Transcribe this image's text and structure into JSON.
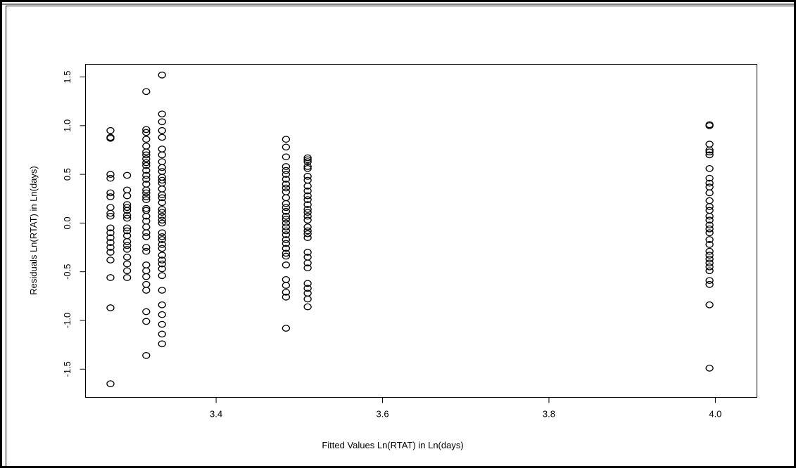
{
  "chart_data": {
    "type": "scatter",
    "title": "",
    "xlabel": "Fitted Values  Ln(RTAT) in Ln(days)",
    "ylabel": "Residuals  Ln(RTAT) in Ln(days)",
    "xlim": [
      3.243,
      4.05
    ],
    "ylim": [
      -1.79,
      1.63
    ],
    "x_ticks": [
      3.4,
      3.6,
      3.8,
      4.0
    ],
    "x_tick_labels": [
      "3.4",
      "3.6",
      "3.8",
      "4.0"
    ],
    "y_ticks": [
      -1.5,
      -1.0,
      -0.5,
      0.0,
      0.5,
      1.0,
      1.5
    ],
    "y_tick_labels": [
      "-1.5",
      "-1.0",
      "-0.5",
      "0.0",
      "0.5",
      "1.0",
      "1.5"
    ],
    "grid": false,
    "marker": "open-circle",
    "columns": [
      {
        "x": 3.273,
        "y": [
          0.95,
          0.88,
          0.87,
          0.5,
          0.46,
          0.31,
          0.27,
          0.16,
          0.1,
          0.07,
          -0.05,
          -0.1,
          -0.15,
          -0.2,
          -0.25,
          -0.3,
          -0.38,
          -0.56,
          -0.87,
          -1.65
        ]
      },
      {
        "x": 3.293,
        "y": [
          0.49,
          0.34,
          0.28,
          0.19,
          0.16,
          0.13,
          0.08,
          0.05,
          -0.05,
          -0.08,
          -0.13,
          -0.19,
          -0.23,
          -0.27,
          -0.35,
          -0.42,
          -0.49,
          -0.56
        ]
      },
      {
        "x": 3.316,
        "y": [
          1.35,
          0.96,
          0.93,
          0.86,
          0.79,
          0.73,
          0.7,
          0.66,
          0.62,
          0.59,
          0.54,
          0.49,
          0.45,
          0.4,
          0.34,
          0.31,
          0.27,
          0.24,
          0.15,
          0.13,
          0.07,
          0.02,
          -0.04,
          -0.1,
          -0.14,
          -0.25,
          -0.29,
          -0.43,
          -0.49,
          -0.55,
          -0.63,
          -0.69,
          -0.91,
          -1.01,
          -1.36
        ]
      },
      {
        "x": 3.335,
        "y": [
          1.52,
          1.12,
          1.04,
          0.95,
          0.88,
          0.76,
          0.7,
          0.63,
          0.57,
          0.53,
          0.47,
          0.44,
          0.41,
          0.35,
          0.29,
          0.26,
          0.21,
          0.14,
          0.11,
          0.07,
          0.03,
          0.0,
          -0.1,
          -0.14,
          -0.17,
          -0.22,
          -0.26,
          -0.33,
          -0.38,
          -0.42,
          -0.47,
          -0.54,
          -0.69,
          -0.84,
          -0.94,
          -1.04,
          -1.14,
          -1.24
        ]
      },
      {
        "x": 3.484,
        "y": [
          0.86,
          0.78,
          0.68,
          0.58,
          0.54,
          0.5,
          0.45,
          0.4,
          0.36,
          0.32,
          0.26,
          0.2,
          0.16,
          0.12,
          0.07,
          0.04,
          0.0,
          -0.04,
          -0.08,
          -0.12,
          -0.17,
          -0.21,
          -0.26,
          -0.31,
          -0.34,
          -0.43,
          -0.58,
          -0.64,
          -0.71,
          -0.76,
          -1.08
        ]
      },
      {
        "x": 3.51,
        "y": [
          0.67,
          0.65,
          0.63,
          0.58,
          0.56,
          0.48,
          0.44,
          0.38,
          0.33,
          0.28,
          0.24,
          0.19,
          0.14,
          0.11,
          0.07,
          0.03,
          -0.04,
          -0.08,
          -0.11,
          -0.15,
          -0.3,
          -0.35,
          -0.41,
          -0.46,
          -0.62,
          -0.67,
          -0.72,
          -0.78,
          -0.86
        ]
      },
      {
        "x": 3.993,
        "y": [
          1.01,
          1.0,
          0.81,
          0.75,
          0.73,
          0.7,
          0.56,
          0.46,
          0.41,
          0.37,
          0.31,
          0.23,
          0.17,
          0.13,
          0.07,
          0.03,
          -0.02,
          -0.06,
          -0.1,
          -0.17,
          -0.22,
          -0.29,
          -0.33,
          -0.37,
          -0.41,
          -0.45,
          -0.49,
          -0.59,
          -0.63,
          -0.84,
          -1.49
        ]
      }
    ]
  }
}
